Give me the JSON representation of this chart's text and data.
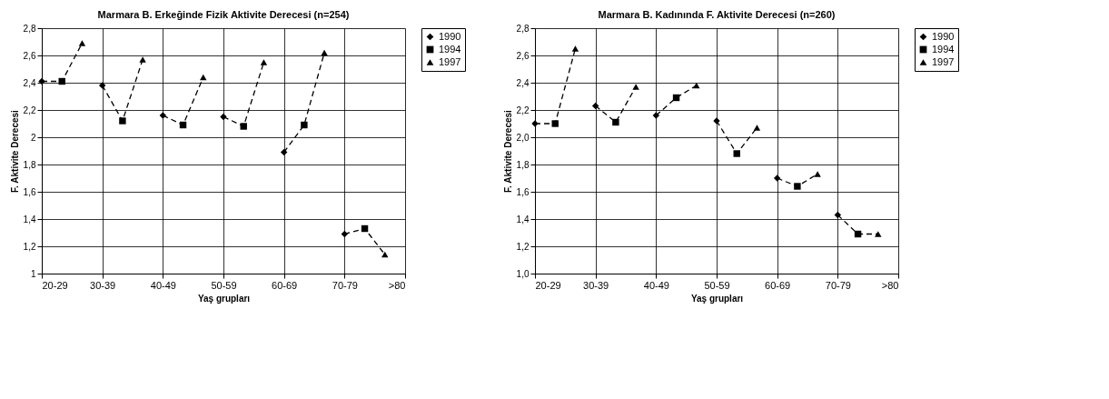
{
  "chart_data": [
    {
      "type": "scatter",
      "title": "Marmara B. Erkeğinde Fizik Aktivite Derecesi (n=254)",
      "xlabel": "Yaş grupları",
      "ylabel": "F. Aktivite Derecesi",
      "categories": [
        "20-29",
        null,
        null,
        "30-39",
        null,
        null,
        "40-49",
        null,
        null,
        "50-59",
        null,
        null,
        "60-69",
        null,
        null,
        "70-79",
        null,
        null,
        ">80"
      ],
      "ylim": [
        1,
        2.8
      ],
      "yticks": [
        1,
        {
          "value": 1.2,
          "label": "1,2"
        },
        {
          "value": 1.4,
          "label": "1,4"
        },
        {
          "value": 1.6,
          "label": "1,6"
        },
        {
          "value": 1.8,
          "label": "1,8"
        },
        2,
        {
          "value": 2.2,
          "label": "2,2"
        },
        {
          "value": 2.4,
          "label": "2,4"
        },
        {
          "value": 2.6,
          "label": "2,6"
        },
        {
          "value": 2.8,
          "label": "2,8"
        }
      ],
      "grid": true,
      "legend": "right",
      "series": [
        {
          "name": "1990",
          "marker": "diamond",
          "color": "#000000",
          "values": [
            2.41,
            null,
            null,
            2.38,
            null,
            null,
            2.16,
            null,
            null,
            2.15,
            null,
            null,
            1.89,
            null,
            null,
            1.29,
            null,
            null,
            null
          ]
        },
        {
          "name": "1994",
          "marker": "square",
          "color": "#000000",
          "values": [
            null,
            2.41,
            null,
            null,
            2.12,
            null,
            null,
            2.09,
            null,
            null,
            2.08,
            null,
            null,
            2.09,
            null,
            null,
            1.33,
            null,
            null
          ]
        },
        {
          "name": "1997",
          "marker": "triangle",
          "color": "#000000",
          "values": [
            null,
            null,
            2.69,
            null,
            null,
            2.57,
            null,
            null,
            2.44,
            null,
            null,
            2.55,
            null,
            null,
            2.62,
            null,
            null,
            1.14,
            null
          ]
        },
        {
          "type": "line",
          "line_style": "dashed",
          "color": "#000000",
          "values": [
            2.41,
            2.41,
            2.69,
            null,
            null,
            null,
            null,
            null,
            null,
            null,
            null,
            null,
            null,
            null,
            null,
            null,
            null,
            null,
            null
          ]
        },
        {
          "type": "line",
          "line_style": "dashed",
          "color": "#000000",
          "values": [
            null,
            null,
            null,
            2.38,
            2.12,
            2.57,
            null,
            null,
            null,
            null,
            null,
            null,
            null,
            null,
            null,
            null,
            null,
            null,
            null
          ]
        },
        {
          "type": "line",
          "line_style": "dashed",
          "color": "#000000",
          "values": [
            null,
            null,
            null,
            null,
            null,
            null,
            2.16,
            2.09,
            2.44,
            null,
            null,
            null,
            null,
            null,
            null,
            null,
            null,
            null,
            null
          ]
        },
        {
          "type": "line",
          "line_style": "dashed",
          "color": "#000000",
          "values": [
            null,
            null,
            null,
            null,
            null,
            null,
            null,
            null,
            null,
            2.15,
            2.08,
            2.55,
            null,
            null,
            null,
            null,
            null,
            null,
            null
          ]
        },
        {
          "type": "line",
          "line_style": "dashed",
          "color": "#000000",
          "values": [
            null,
            null,
            null,
            null,
            null,
            null,
            null,
            null,
            null,
            null,
            null,
            null,
            1.89,
            2.09,
            2.62,
            null,
            null,
            null,
            null
          ]
        },
        {
          "type": "line",
          "line_style": "dashed",
          "color": "#000000",
          "values": [
            null,
            null,
            null,
            null,
            null,
            null,
            null,
            null,
            null,
            null,
            null,
            null,
            null,
            null,
            null,
            1.29,
            1.33,
            1.14,
            null
          ]
        }
      ]
    },
    {
      "type": "scatter",
      "title": "Marmara B. Kadınında F. Aktivite Derecesi (n=260)",
      "xlabel": "Yaş grupları",
      "ylabel": "F. Aktivite Derecesi",
      "categories": [
        "20-29",
        null,
        null,
        "30-39",
        null,
        null,
        "40-49",
        null,
        null,
        "50-59",
        null,
        null,
        "60-69",
        null,
        null,
        "70-79",
        null,
        null,
        ">80"
      ],
      "ylim": [
        1,
        2.8
      ],
      "yticks": [
        {
          "value": 1,
          "label": "1,0"
        },
        {
          "value": 1.2,
          "label": "1,2"
        },
        {
          "value": 1.4,
          "label": "1,4"
        },
        {
          "value": 1.6,
          "label": "1,6"
        },
        {
          "value": 1.8,
          "label": "1,8"
        },
        {
          "value": 2,
          "label": "2,0"
        },
        {
          "value": 2.2,
          "label": "2,2"
        },
        {
          "value": 2.4,
          "label": "2,4"
        },
        {
          "value": 2.6,
          "label": "2,6"
        },
        {
          "value": 2.8,
          "label": "2,8"
        }
      ],
      "grid": true,
      "legend": "right",
      "series": [
        {
          "name": "1990",
          "marker": "diamond",
          "color": "#000000",
          "values": [
            2.1,
            null,
            null,
            2.23,
            null,
            null,
            2.16,
            null,
            null,
            2.12,
            null,
            null,
            1.7,
            null,
            null,
            1.43,
            null,
            null,
            null
          ]
        },
        {
          "name": "1994",
          "marker": "square",
          "color": "#000000",
          "values": [
            null,
            2.1,
            null,
            null,
            2.11,
            null,
            null,
            2.29,
            null,
            null,
            1.88,
            null,
            null,
            1.64,
            null,
            null,
            1.29,
            null,
            null
          ]
        },
        {
          "name": "1997",
          "marker": "triangle",
          "color": "#000000",
          "values": [
            null,
            null,
            2.65,
            null,
            null,
            2.37,
            null,
            null,
            2.38,
            null,
            null,
            2.07,
            null,
            null,
            1.73,
            null,
            null,
            1.29,
            null
          ]
        },
        {
          "type": "line",
          "line_style": "dashed",
          "color": "#000000",
          "values": [
            2.1,
            2.1,
            2.65,
            null,
            null,
            null,
            null,
            null,
            null,
            null,
            null,
            null,
            null,
            null,
            null,
            null,
            null,
            null,
            null
          ]
        },
        {
          "type": "line",
          "line_style": "dashed",
          "color": "#000000",
          "values": [
            null,
            null,
            null,
            2.23,
            2.11,
            2.37,
            null,
            null,
            null,
            null,
            null,
            null,
            null,
            null,
            null,
            null,
            null,
            null,
            null
          ]
        },
        {
          "type": "line",
          "line_style": "dashed",
          "color": "#000000",
          "values": [
            null,
            null,
            null,
            null,
            null,
            null,
            2.16,
            2.29,
            2.38,
            null,
            null,
            null,
            null,
            null,
            null,
            null,
            null,
            null,
            null
          ]
        },
        {
          "type": "line",
          "line_style": "dashed",
          "color": "#000000",
          "values": [
            null,
            null,
            null,
            null,
            null,
            null,
            null,
            null,
            null,
            2.12,
            1.88,
            2.07,
            null,
            null,
            null,
            null,
            null,
            null,
            null
          ]
        },
        {
          "type": "line",
          "line_style": "dashed",
          "color": "#000000",
          "values": [
            null,
            null,
            null,
            null,
            null,
            null,
            null,
            null,
            null,
            null,
            null,
            null,
            1.7,
            1.64,
            1.73,
            null,
            null,
            null,
            null
          ]
        },
        {
          "type": "line",
          "line_style": "dashed",
          "color": "#000000",
          "values": [
            null,
            null,
            null,
            null,
            null,
            null,
            null,
            null,
            null,
            null,
            null,
            null,
            null,
            null,
            null,
            1.43,
            1.29,
            1.29,
            null
          ]
        }
      ]
    }
  ]
}
